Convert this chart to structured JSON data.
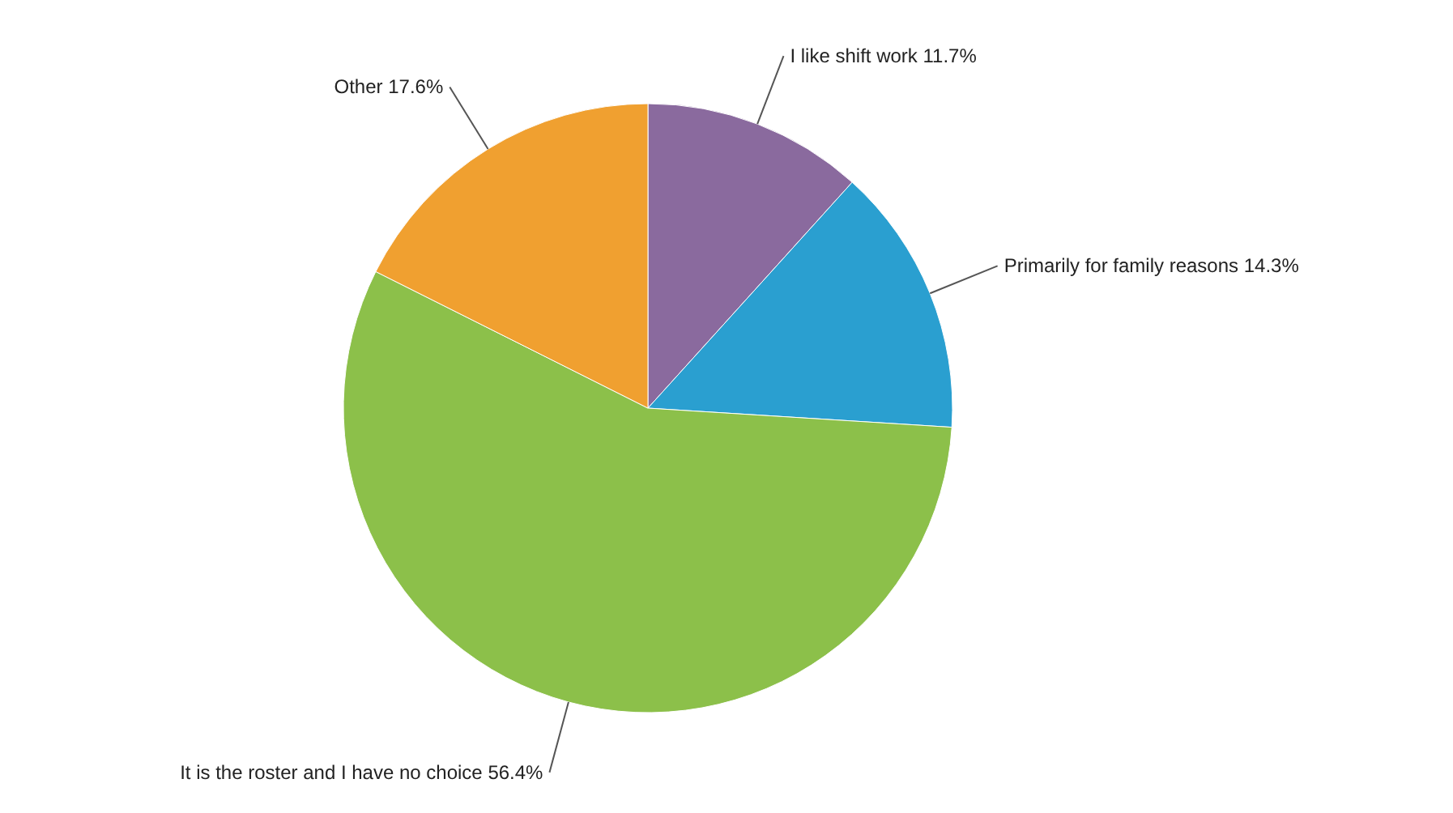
{
  "chart_data": {
    "type": "pie",
    "categories": [
      "I like shift work 11.7%",
      "Primarily for family reasons 14.3%",
      "It is the roster and I have no choice 56.4%",
      "Other 17.6%"
    ],
    "values": [
      11.7,
      14.3,
      56.4,
      17.6
    ],
    "colors": [
      "#8a6a9e",
      "#2a9fd0",
      "#8cc04a",
      "#f0a030"
    ]
  }
}
